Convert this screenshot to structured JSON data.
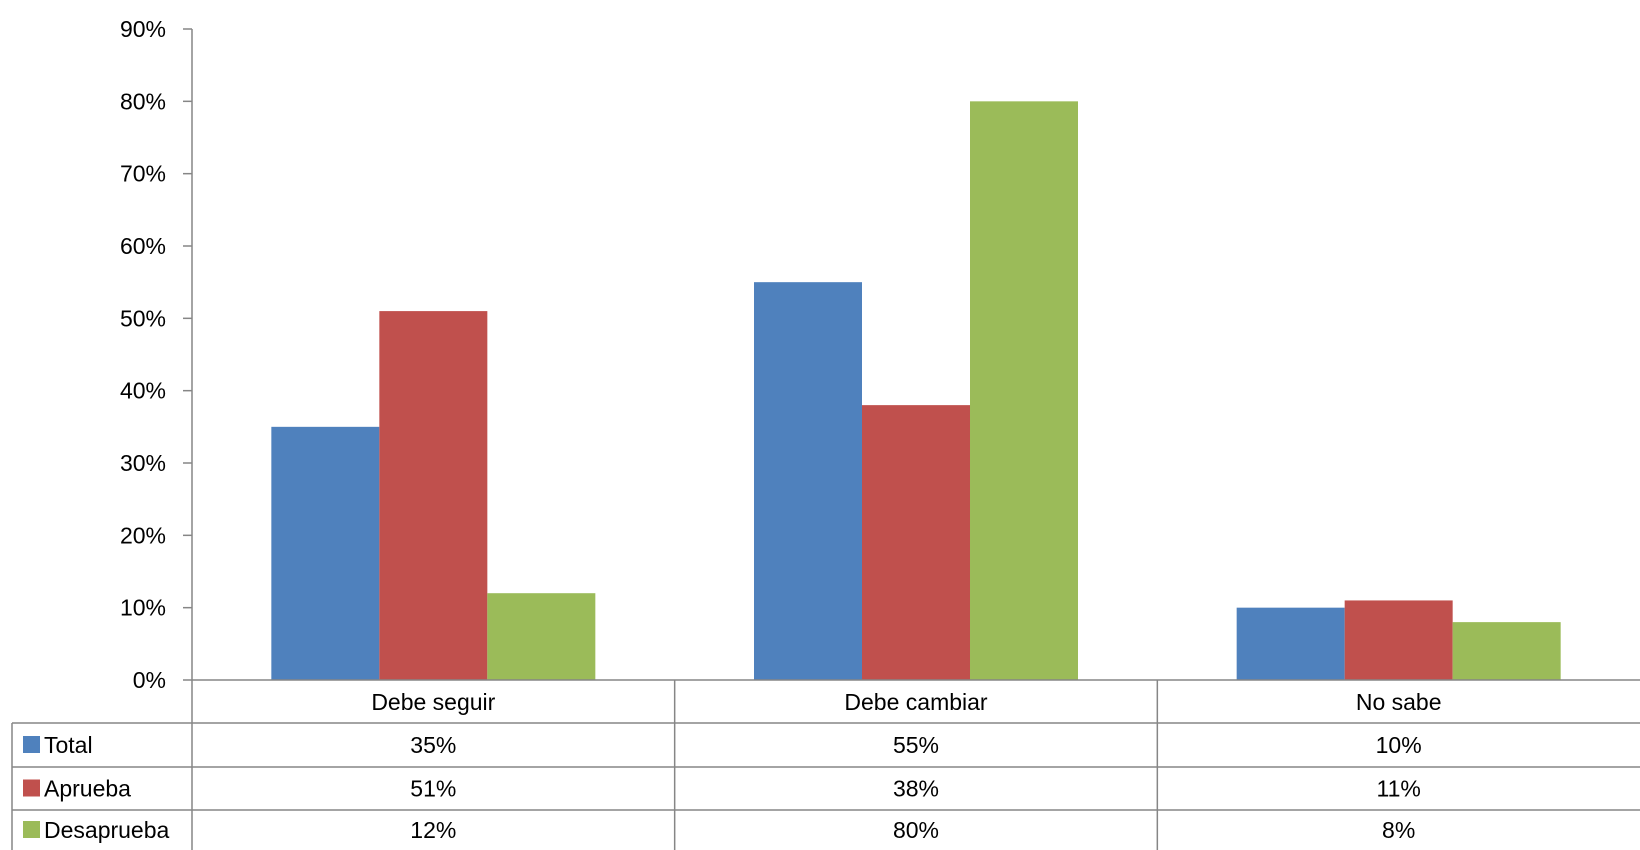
{
  "chart_data": {
    "type": "bar",
    "categories": [
      "Debe seguir",
      "Debe cambiar",
      "No sabe"
    ],
    "series": [
      {
        "name": "Total",
        "color": "#4F81BD",
        "values": [
          35,
          55,
          10
        ],
        "labels": [
          "35%",
          "55%",
          "10%"
        ]
      },
      {
        "name": "Aprueba",
        "color": "#C0504D",
        "values": [
          51,
          38,
          11
        ],
        "labels": [
          "51%",
          "38%",
          "11%"
        ]
      },
      {
        "name": "Desaprueba",
        "color": "#9BBB59",
        "values": [
          12,
          80,
          8
        ],
        "labels": [
          "12%",
          "80%",
          "8%"
        ]
      }
    ],
    "ylim": [
      0,
      90
    ],
    "yticks": [
      0,
      10,
      20,
      30,
      40,
      50,
      60,
      70,
      80,
      90
    ],
    "ytick_labels": [
      "0%",
      "10%",
      "20%",
      "30%",
      "40%",
      "50%",
      "60%",
      "70%",
      "80%",
      "90%"
    ],
    "grid": false,
    "legend": "data-table",
    "table": true
  }
}
